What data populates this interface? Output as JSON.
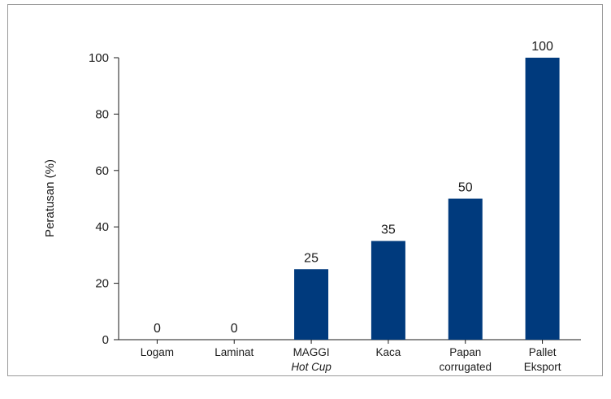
{
  "chart_data": {
    "type": "bar",
    "title": "",
    "xlabel": "",
    "ylabel": "Peratusan (%)",
    "ylim": [
      0,
      100
    ],
    "yticks": [
      0,
      20,
      40,
      60,
      80,
      100
    ],
    "categories": [
      {
        "line1": "Logam",
        "line2": "",
        "line2_italic": false
      },
      {
        "line1": "Laminat",
        "line2": "",
        "line2_italic": false
      },
      {
        "line1": "MAGGI",
        "line2": "Hot Cup",
        "line2_italic": true
      },
      {
        "line1": "Kaca",
        "line2": "",
        "line2_italic": false
      },
      {
        "line1": "Papan",
        "line2": "corrugated",
        "line2_italic": false
      },
      {
        "line1": "Pallet",
        "line2": "Eksport",
        "line2_italic": false
      }
    ],
    "values": [
      0,
      0,
      25,
      35,
      50,
      100
    ],
    "data_labels": [
      "0",
      "0",
      "25",
      "35",
      "50",
      "100"
    ],
    "bar_color": "#003a7d",
    "axis_color": "#1a1a1a",
    "grid": false,
    "legend": "none"
  }
}
